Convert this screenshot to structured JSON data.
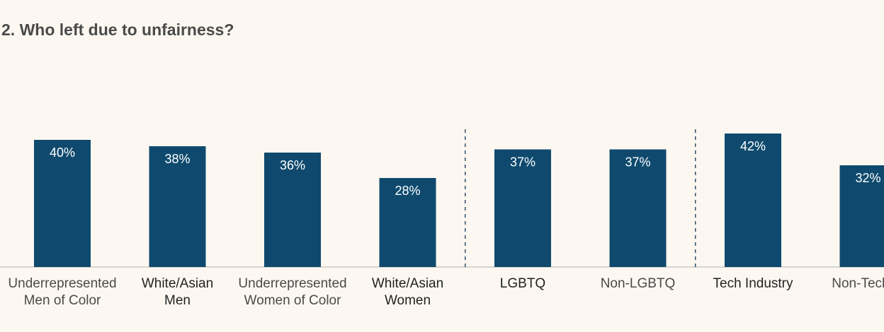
{
  "title": "2. Who left due to unfairness?",
  "chart_data": {
    "type": "bar",
    "categories": [
      [
        "Underrepresented",
        "Men of Color"
      ],
      [
        "White/Asian",
        "Men"
      ],
      [
        "Underrepresented",
        "Women of Color"
      ],
      [
        "White/Asian",
        "Women"
      ],
      [
        "LGBTQ"
      ],
      [
        "Non-LGBTQ"
      ],
      [
        "Tech Industry"
      ],
      [
        "Non-Tech In"
      ]
    ],
    "values": [
      40,
      38,
      36,
      28,
      37,
      37,
      42,
      32
    ],
    "value_labels": [
      "40%",
      "38%",
      "36%",
      "28%",
      "37%",
      "37%",
      "42%",
      "32%"
    ],
    "groups": [
      {
        "members": [
          0,
          1,
          2,
          3
        ]
      },
      {
        "members": [
          4,
          5
        ]
      },
      {
        "members": [
          6,
          7
        ]
      }
    ],
    "dark_label_indices": [
      1,
      3,
      4,
      6
    ],
    "bar_color": "#0f4a6e",
    "ylim": [
      0,
      100
    ],
    "grid": false,
    "legend": "none"
  }
}
